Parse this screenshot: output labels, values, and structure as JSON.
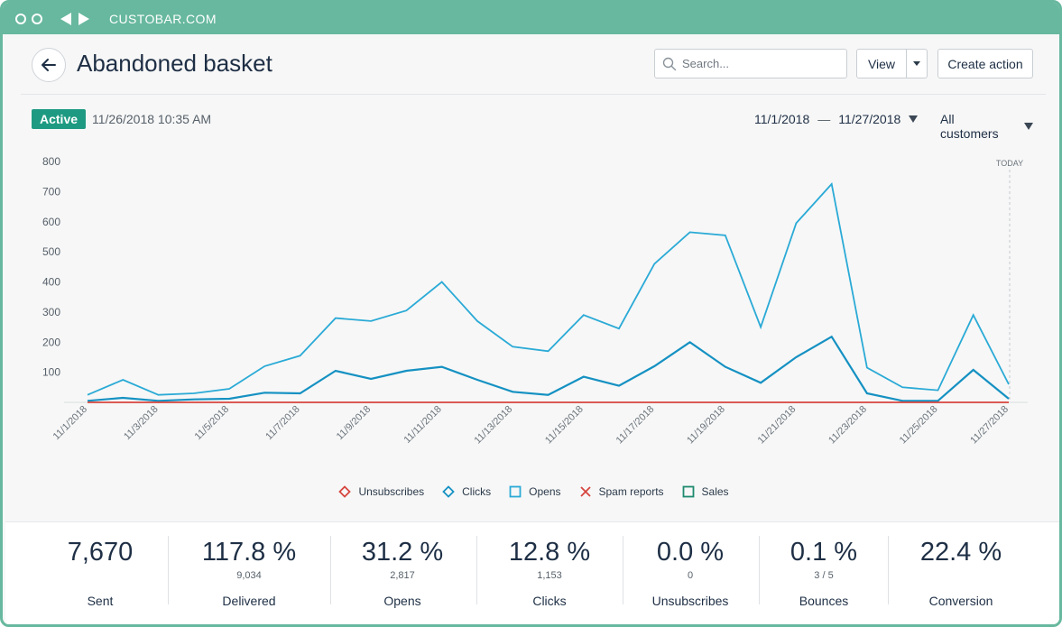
{
  "browser": {
    "url": "CUSTOBAR.COM"
  },
  "header": {
    "title": "Abandoned basket",
    "search_placeholder": "Search...",
    "view_label": "View",
    "create_label": "Create action"
  },
  "status": {
    "badge": "Active",
    "timestamp": "11/26/2018 10:35 AM",
    "date_from": "11/1/2018",
    "date_sep": "—",
    "date_to": "11/27/2018",
    "segment": "All customers"
  },
  "chart_data": {
    "type": "line",
    "x": [
      "11/1/2018",
      "11/2/2018",
      "11/3/2018",
      "11/4/2018",
      "11/5/2018",
      "11/6/2018",
      "11/7/2018",
      "11/8/2018",
      "11/9/2018",
      "11/10/2018",
      "11/11/2018",
      "11/12/2018",
      "11/13/2018",
      "11/14/2018",
      "11/15/2018",
      "11/16/2018",
      "11/17/2018",
      "11/18/2018",
      "11/19/2018",
      "11/20/2018",
      "11/21/2018",
      "11/22/2018",
      "11/23/2018",
      "11/24/2018",
      "11/25/2018",
      "11/26/2018",
      "11/27/2018"
    ],
    "tick_labels": [
      "11/1/2018",
      "11/3/2018",
      "11/5/2018",
      "11/7/2018",
      "11/9/2018",
      "11/11/2018",
      "11/13/2018",
      "11/15/2018",
      "11/17/2018",
      "11/19/2018",
      "11/21/2018",
      "11/23/2018",
      "11/25/2018",
      "11/27/2018"
    ],
    "yticks": [
      100,
      200,
      300,
      400,
      500,
      600,
      700,
      800
    ],
    "ylim": [
      0,
      800
    ],
    "today_label": "TODAY",
    "series": [
      {
        "name": "Opens",
        "color": "#2aaad6",
        "values": [
          25,
          75,
          25,
          30,
          45,
          120,
          155,
          280,
          270,
          305,
          400,
          270,
          185,
          170,
          290,
          245,
          460,
          565,
          555,
          250,
          595,
          725,
          115,
          50,
          40,
          290,
          60
        ]
      },
      {
        "name": "Clicks",
        "color": "#1591c2",
        "values": [
          5,
          15,
          5,
          10,
          12,
          32,
          30,
          105,
          78,
          105,
          118,
          75,
          35,
          25,
          85,
          55,
          120,
          200,
          118,
          65,
          150,
          218,
          30,
          5,
          5,
          108,
          12
        ]
      },
      {
        "name": "Unsubscribes",
        "color": "#d6453d",
        "values": [
          0,
          0,
          0,
          0,
          0,
          0,
          0,
          0,
          0,
          0,
          0,
          0,
          0,
          0,
          0,
          0,
          0,
          0,
          0,
          0,
          0,
          0,
          0,
          0,
          0,
          0,
          0
        ]
      }
    ]
  },
  "legend": [
    {
      "label": "Unsubscribes",
      "icon": "diamond-outline-icon",
      "color": "#d6453d"
    },
    {
      "label": "Clicks",
      "icon": "diamond-outline-icon",
      "color": "#1591c2"
    },
    {
      "label": "Opens",
      "icon": "square-outline-icon",
      "color": "#2aaad6"
    },
    {
      "label": "Spam reports",
      "icon": "cross-icon",
      "color": "#d6453d"
    },
    {
      "label": "Sales",
      "icon": "square-outline-icon",
      "color": "#1f8a6f"
    }
  ],
  "stats": [
    {
      "value": "7,670",
      "sub": "",
      "label": "Sent"
    },
    {
      "value": "117.8 %",
      "sub": "9,034",
      "label": "Delivered"
    },
    {
      "value": "31.2 %",
      "sub": "2,817",
      "label": "Opens"
    },
    {
      "value": "12.8 %",
      "sub": "1,153",
      "label": "Clicks"
    },
    {
      "value": "0.0 %",
      "sub": "0",
      "label": "Unsubscribes"
    },
    {
      "value": "0.1 %",
      "sub": "3 / 5",
      "label": "Bounces"
    },
    {
      "value": "22.4 %",
      "sub": "",
      "label": "Conversion"
    }
  ]
}
